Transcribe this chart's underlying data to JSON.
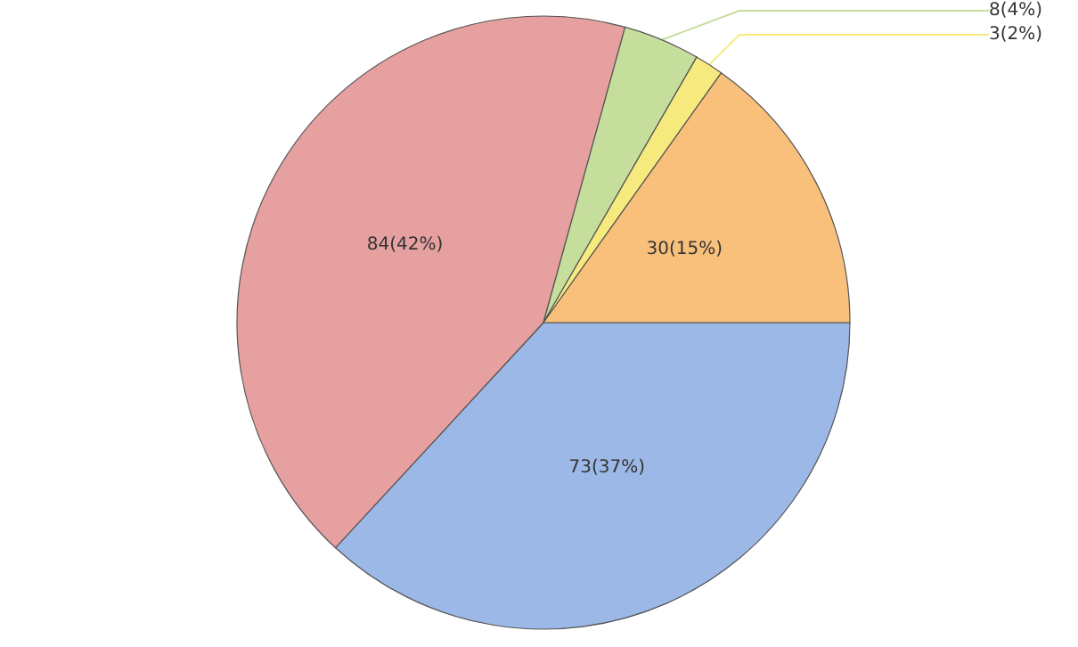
{
  "chart_data": {
    "type": "pie",
    "categories": [
      null,
      null,
      null,
      null,
      null
    ],
    "values": [
      73,
      84,
      8,
      3,
      30
    ],
    "value_labels": [
      "73(37%)",
      "84(42%)",
      "8(4%)",
      "3(2%)",
      "30(15%)"
    ],
    "colors": [
      "#9bb8e6",
      "#e6a0a0",
      "#c6de9c",
      "#f6ea7e",
      "#f8c07a"
    ]
  }
}
